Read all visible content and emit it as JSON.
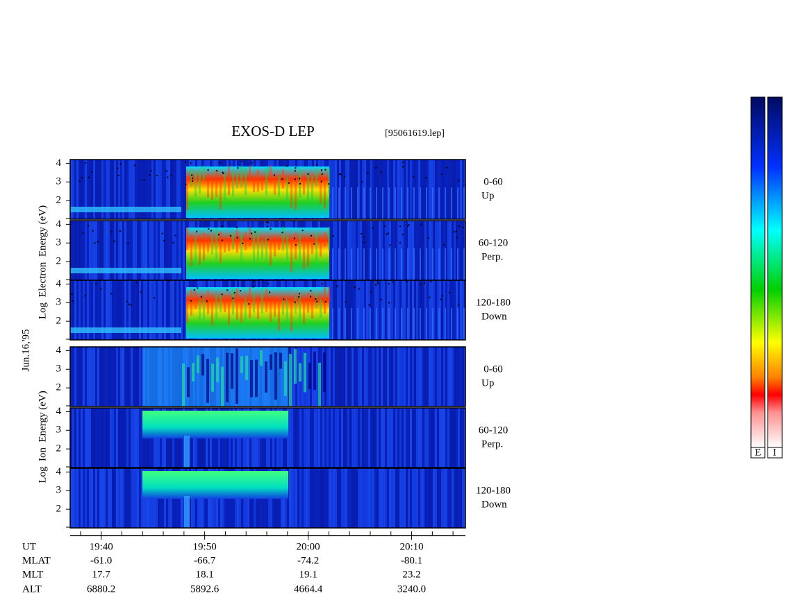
{
  "chart_data": {
    "type": "spectrogram",
    "title": "EXOS-D LEP",
    "file_label": "[95061619.lep]",
    "date_label": "Jun.16,'95",
    "electron_axis_label": "Log  Electron  Energy (eV)",
    "ion_axis_label": "Log  Ion  Energy (eV)",
    "electron_panels": [
      {
        "pitch": "0-60",
        "direction": "Up"
      },
      {
        "pitch": "60-120",
        "direction": "Perp."
      },
      {
        "pitch": "120-180",
        "direction": "Down"
      }
    ],
    "ion_panels": [
      {
        "pitch": "0-60",
        "direction": "Up"
      },
      {
        "pitch": "60-120",
        "direction": "Perp."
      },
      {
        "pitch": "120-180",
        "direction": "Down"
      }
    ],
    "ylim": [
      1,
      4.2
    ],
    "yticks": [
      2,
      3,
      4
    ],
    "xlim": [
      37,
      75.2
    ],
    "xticks": [
      {
        "value": 40,
        "label": "19:40"
      },
      {
        "value": 50,
        "label": "19:50"
      },
      {
        "value": 60,
        "label": "20:00"
      },
      {
        "value": 70,
        "label": "20:10"
      }
    ],
    "minor_xticks": [
      38,
      42,
      44,
      46,
      48,
      52,
      54,
      56,
      58,
      62,
      64,
      66,
      68,
      72,
      74
    ],
    "ephemeris": {
      "labels": [
        "UT",
        "MLAT",
        "MLT",
        "ALT"
      ],
      "rows": [
        [
          "-61.0",
          "-66.7",
          "-74.2",
          "-80.1"
        ],
        [
          "17.7",
          "18.1",
          "19.1",
          "23.2"
        ],
        [
          "6880.2",
          "5892.6",
          "4664.4",
          "3240.0"
        ]
      ]
    },
    "colorbar_labels": [
      "E",
      "I"
    ]
  }
}
